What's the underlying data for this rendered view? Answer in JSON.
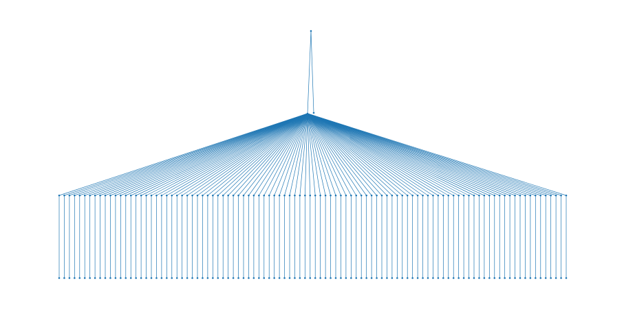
{
  "diagram": {
    "type": "tree",
    "colors": {
      "edge": "#1f77b4",
      "node": "#1f77b4",
      "background": "#ffffff"
    },
    "root": {
      "children": 2
    },
    "hub": {
      "branches": 100
    },
    "leaf_chain_length": 1,
    "labels": []
  }
}
